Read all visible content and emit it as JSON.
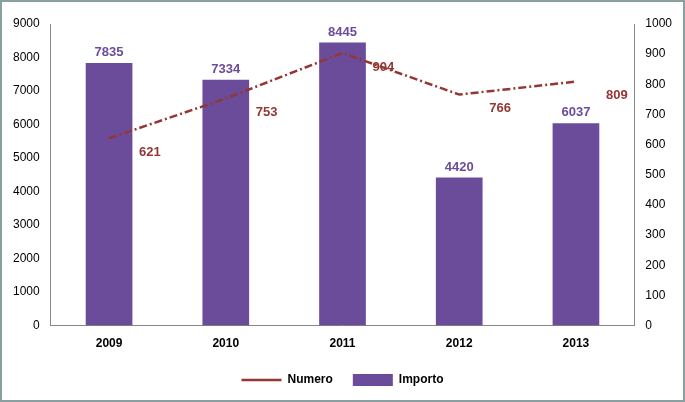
{
  "chart_data": {
    "type": "bar",
    "categories": [
      "2009",
      "2010",
      "2011",
      "2012",
      "2013"
    ],
    "series": [
      {
        "name": "Importo",
        "type": "bar",
        "color": "#6b4c9a",
        "values": [
          7835,
          7334,
          8445,
          4420,
          6037
        ]
      },
      {
        "name": "Numero",
        "type": "line",
        "axis": "y2",
        "color": "#943634",
        "line_style": "dashdot",
        "marker": "none",
        "values": [
          621,
          753,
          904,
          766,
          809
        ]
      }
    ],
    "ylim": [
      0,
      9000
    ],
    "yticks": [
      0,
      1000,
      2000,
      3000,
      4000,
      5000,
      6000,
      7000,
      8000,
      9000
    ],
    "y2lim": [
      0,
      1000
    ],
    "y2ticks": [
      0,
      100,
      200,
      300,
      400,
      500,
      600,
      700,
      800,
      900,
      1000
    ],
    "data_labels": true,
    "legend": "bottom",
    "grid": false
  }
}
